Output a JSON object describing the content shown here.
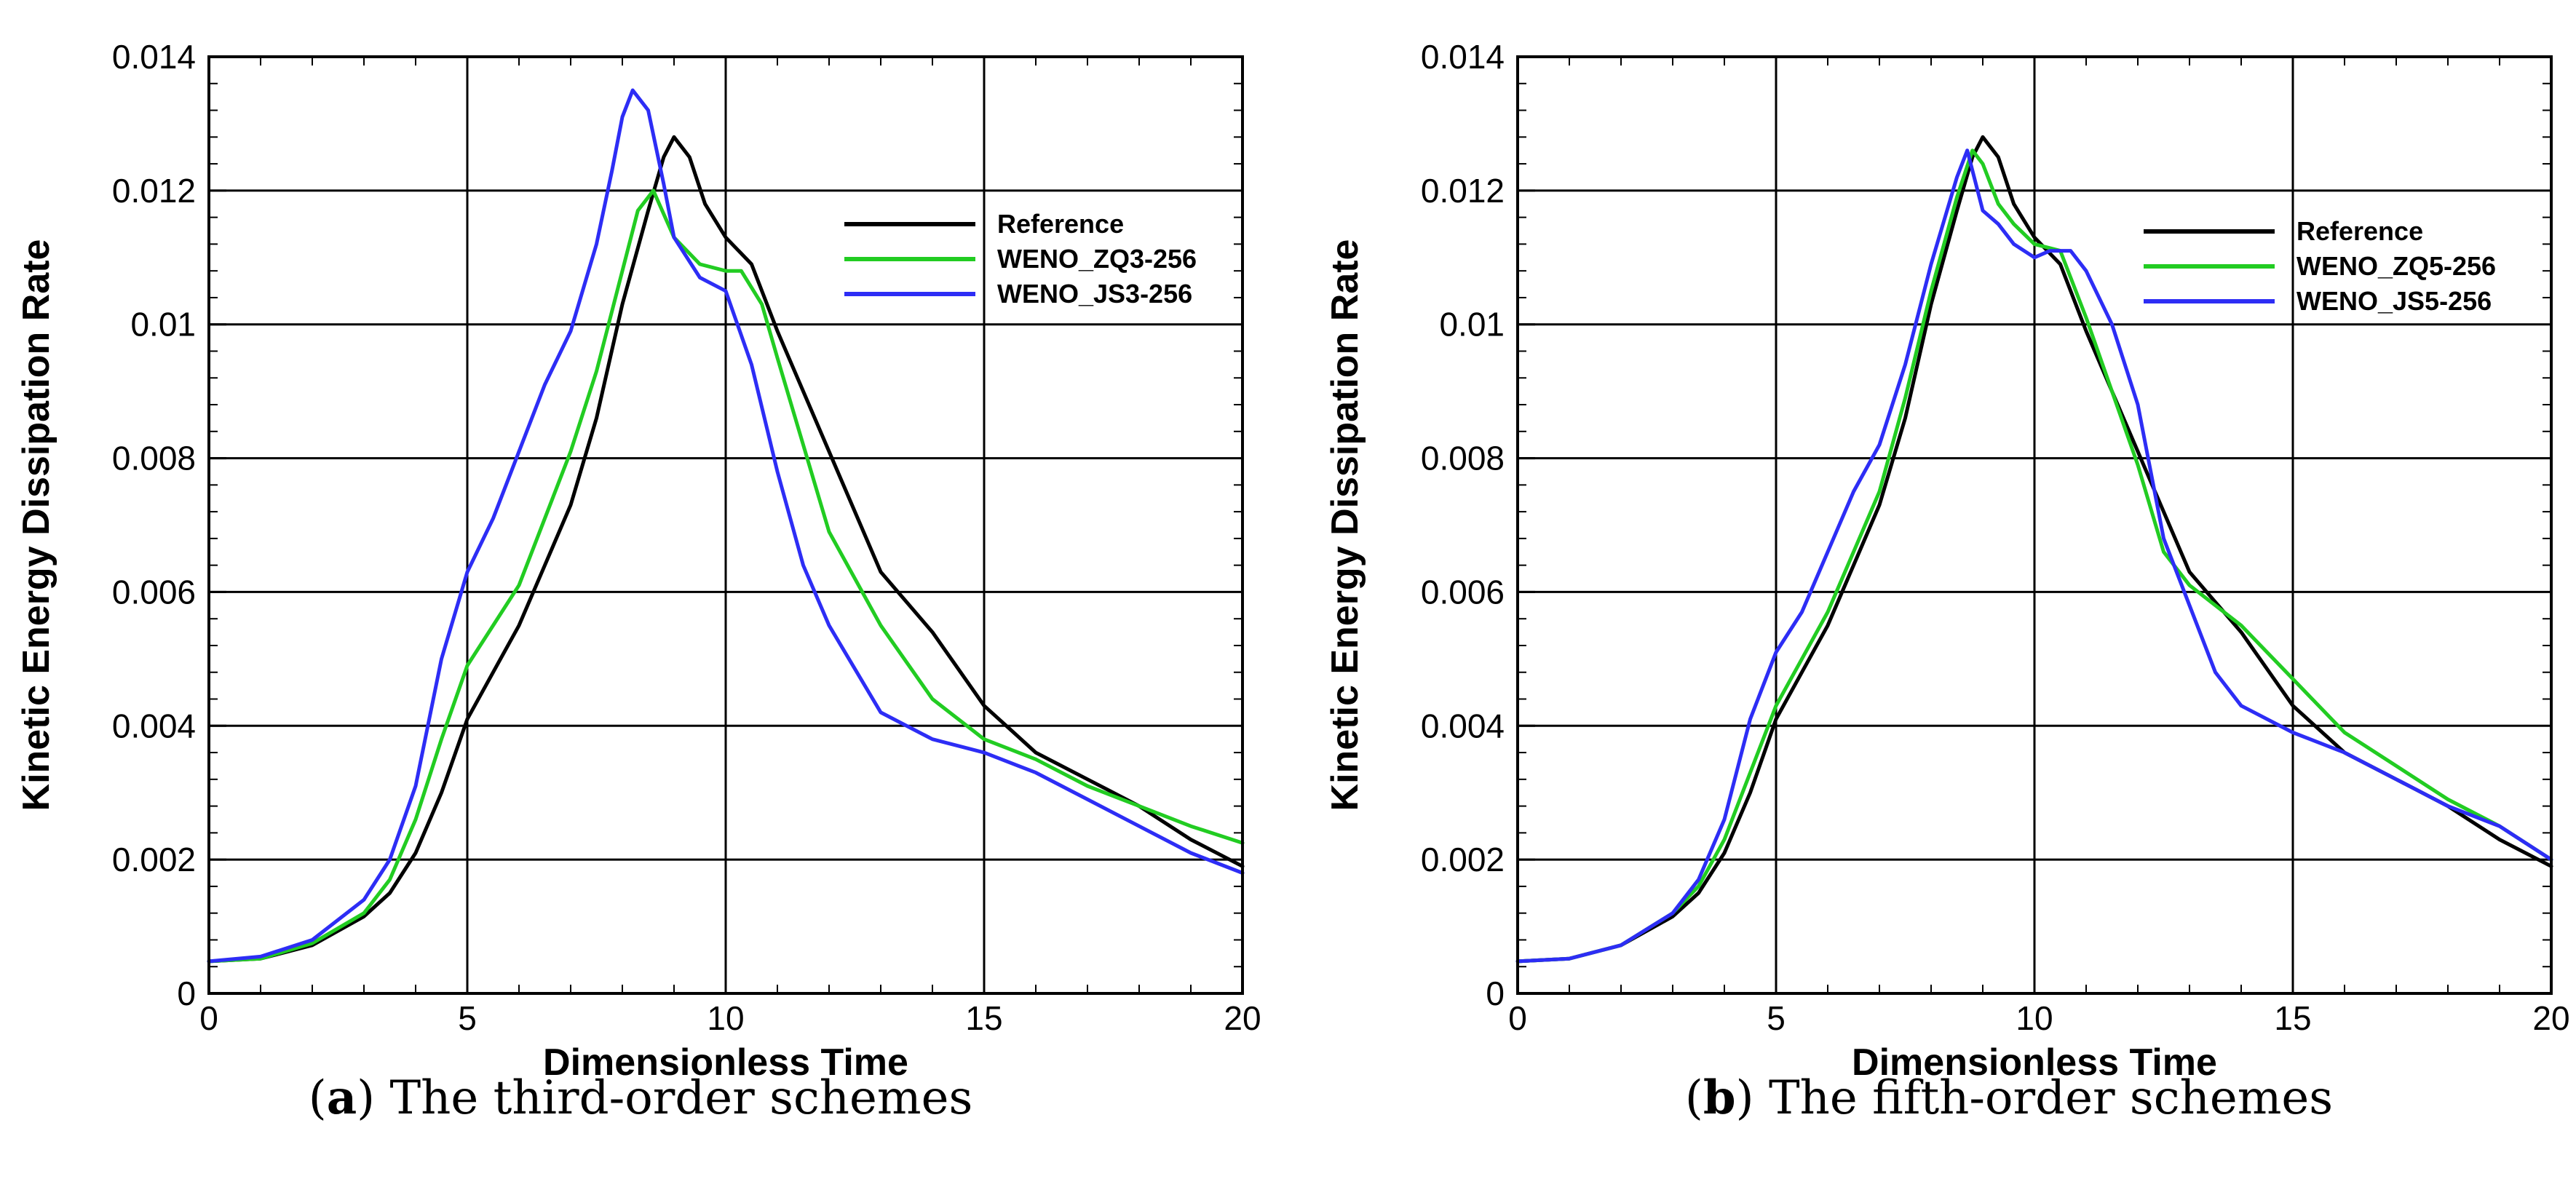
{
  "chart_data": [
    {
      "type": "line",
      "xlabel": "Dimensionless Time",
      "ylabel": "Kinetic Energy Dissipation Rate",
      "xlim": [
        0,
        20
      ],
      "ylim": [
        0,
        0.014
      ],
      "xticks": [
        0,
        5,
        10,
        15,
        20
      ],
      "xtick_labels": [
        "0",
        "5",
        "10",
        "15",
        "20"
      ],
      "yticks": [
        0,
        0.002,
        0.004,
        0.006,
        0.008,
        0.01,
        0.012,
        0.014
      ],
      "ytick_labels": [
        "0",
        "0.002",
        "0.004",
        "0.006",
        "0.008",
        "0.01",
        "0.012",
        "0.014"
      ],
      "grid": true,
      "legend_position": "top-right",
      "caption": {
        "letter": "a",
        "text": "The third-order schemes"
      },
      "series": [
        {
          "name": "Reference",
          "color": "#000000",
          "x": [
            0,
            1,
            2,
            3,
            3.5,
            4,
            4.5,
            5,
            5.5,
            6,
            6.5,
            7,
            7.5,
            8,
            8.5,
            8.8,
            9,
            9.3,
            9.6,
            10,
            10.5,
            11,
            12,
            13,
            14,
            15,
            16,
            17,
            18,
            19,
            20
          ],
          "y": [
            0.00048,
            0.00052,
            0.00072,
            0.00115,
            0.0015,
            0.0021,
            0.003,
            0.0041,
            0.0048,
            0.0055,
            0.0064,
            0.0073,
            0.0086,
            0.0103,
            0.0117,
            0.0125,
            0.0128,
            0.0125,
            0.0118,
            0.0113,
            0.0109,
            0.0099,
            0.0081,
            0.0063,
            0.0054,
            0.0043,
            0.0036,
            0.0032,
            0.0028,
            0.0023,
            0.0019
          ]
        },
        {
          "name": "WENO_ZQ3-256",
          "color": "#22cc22",
          "x": [
            0,
            1,
            2,
            3,
            3.5,
            4,
            4.5,
            5,
            5.5,
            6,
            6.5,
            7,
            7.5,
            8,
            8.3,
            8.6,
            9,
            9.5,
            10,
            10.3,
            10.7,
            11,
            11.5,
            12,
            13,
            14,
            15,
            16,
            17,
            18,
            19,
            20
          ],
          "y": [
            0.00048,
            0.00052,
            0.00075,
            0.0012,
            0.0017,
            0.0026,
            0.0038,
            0.0049,
            0.0055,
            0.0061,
            0.0071,
            0.0081,
            0.0093,
            0.0108,
            0.0117,
            0.012,
            0.0113,
            0.0109,
            0.0108,
            0.0108,
            0.0103,
            0.0095,
            0.0082,
            0.0069,
            0.0055,
            0.0044,
            0.0038,
            0.0035,
            0.0031,
            0.0028,
            0.0025,
            0.00225
          ]
        },
        {
          "name": "WENO_JS3-256",
          "color": "#2d2df5",
          "x": [
            0,
            1,
            2,
            3,
            3.5,
            4,
            4.5,
            5,
            5.5,
            6,
            6.5,
            7,
            7.5,
            7.8,
            8,
            8.2,
            8.5,
            8.8,
            9,
            9.5,
            10,
            10.5,
            11,
            11.5,
            12,
            13,
            14,
            15,
            16,
            17,
            18,
            19,
            20
          ],
          "y": [
            0.00048,
            0.00055,
            0.0008,
            0.0014,
            0.002,
            0.0031,
            0.005,
            0.0063,
            0.0071,
            0.0081,
            0.0091,
            0.0099,
            0.0112,
            0.0123,
            0.0131,
            0.0135,
            0.0132,
            0.0121,
            0.0113,
            0.0107,
            0.0105,
            0.0094,
            0.0078,
            0.0064,
            0.0055,
            0.0042,
            0.0038,
            0.0036,
            0.0033,
            0.0029,
            0.0025,
            0.0021,
            0.0018
          ]
        }
      ]
    },
    {
      "type": "line",
      "xlabel": "Dimensionless Time",
      "ylabel": "Kinetic Energy Dissipation Rate",
      "xlim": [
        0,
        20
      ],
      "ylim": [
        0,
        0.014
      ],
      "xticks": [
        0,
        5,
        10,
        15,
        20
      ],
      "xtick_labels": [
        "0",
        "5",
        "10",
        "15",
        "20"
      ],
      "yticks": [
        0,
        0.002,
        0.004,
        0.006,
        0.008,
        0.01,
        0.012,
        0.014
      ],
      "ytick_labels": [
        "0",
        "0.002",
        "0.004",
        "0.006",
        "0.008",
        "0.01",
        "0.012",
        "0.014"
      ],
      "grid": true,
      "legend_position": "top-right",
      "caption": {
        "letter": "b",
        "text": "The fifth-order schemes"
      },
      "series": [
        {
          "name": "Reference",
          "color": "#000000",
          "x": [
            0,
            1,
            2,
            3,
            3.5,
            4,
            4.5,
            5,
            5.5,
            6,
            6.5,
            7,
            7.5,
            8,
            8.5,
            8.8,
            9,
            9.3,
            9.6,
            10,
            10.5,
            11,
            12,
            13,
            14,
            15,
            16,
            17,
            18,
            19,
            20
          ],
          "y": [
            0.00048,
            0.00052,
            0.00072,
            0.00115,
            0.0015,
            0.0021,
            0.003,
            0.0041,
            0.0048,
            0.0055,
            0.0064,
            0.0073,
            0.0086,
            0.0103,
            0.0117,
            0.0125,
            0.0128,
            0.0125,
            0.0118,
            0.0113,
            0.0109,
            0.0099,
            0.0081,
            0.0063,
            0.0054,
            0.0043,
            0.0036,
            0.0032,
            0.0028,
            0.0023,
            0.0019
          ]
        },
        {
          "name": "WENO_ZQ5-256",
          "color": "#22cc22",
          "x": [
            0,
            1,
            2,
            3,
            3.5,
            4,
            4.5,
            5,
            5.5,
            6,
            6.5,
            7,
            7.5,
            8,
            8.5,
            8.8,
            9,
            9.3,
            9.6,
            10,
            10.5,
            11,
            12,
            12.5,
            13,
            14,
            15,
            16,
            17,
            18,
            19,
            20
          ],
          "y": [
            0.00048,
            0.00052,
            0.00072,
            0.0012,
            0.0016,
            0.0023,
            0.0033,
            0.0043,
            0.005,
            0.0057,
            0.0066,
            0.0075,
            0.0089,
            0.0105,
            0.0119,
            0.0126,
            0.0124,
            0.0118,
            0.0115,
            0.0112,
            0.0111,
            0.0101,
            0.0079,
            0.0066,
            0.0061,
            0.0055,
            0.0047,
            0.0039,
            0.0034,
            0.0029,
            0.0025,
            0.002
          ]
        },
        {
          "name": "WENO_JS5-256",
          "color": "#2d2df5",
          "x": [
            0,
            1,
            2,
            3,
            3.5,
            4,
            4.5,
            5,
            5.5,
            6,
            6.5,
            7,
            7.5,
            8,
            8.5,
            8.7,
            9,
            9.3,
            9.6,
            10,
            10.3,
            10.7,
            11,
            11.5,
            12,
            12.5,
            13,
            13.5,
            14,
            15,
            16,
            17,
            18,
            19,
            20
          ],
          "y": [
            0.00048,
            0.00052,
            0.00072,
            0.0012,
            0.0017,
            0.0026,
            0.0041,
            0.0051,
            0.0057,
            0.0066,
            0.0075,
            0.0082,
            0.0094,
            0.0109,
            0.0122,
            0.0126,
            0.0117,
            0.0115,
            0.0112,
            0.011,
            0.0111,
            0.0111,
            0.0108,
            0.01,
            0.0088,
            0.0068,
            0.0058,
            0.0048,
            0.0043,
            0.0039,
            0.0036,
            0.0032,
            0.0028,
            0.0025,
            0.002
          ]
        }
      ]
    }
  ]
}
